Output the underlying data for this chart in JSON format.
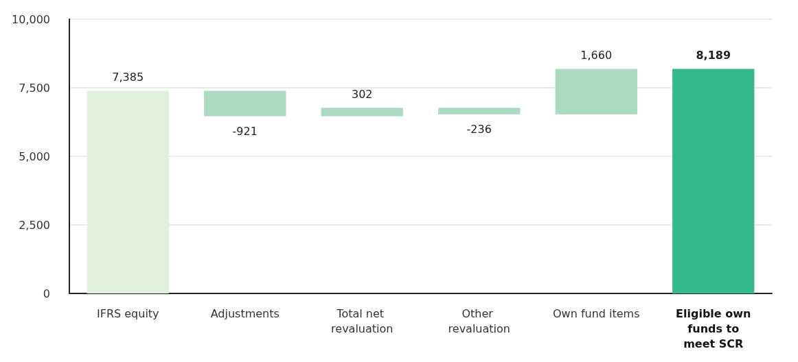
{
  "chart_data": {
    "type": "bar",
    "categories": [
      "IFRS equity",
      "Adjustments",
      "Total net revaluation",
      "Other revaluation",
      "Own fund items",
      "Eligible own funds to meet SCR"
    ],
    "values": [
      7385,
      -921,
      302,
      -236,
      1660,
      8189
    ],
    "base": [
      0,
      7385,
      6464,
      6766,
      6530,
      0
    ],
    "colors": [
      "#e2efdc",
      "#acd9c2",
      "#acd9c2",
      "#acd9c2",
      "#acd9c2",
      "#33b98a"
    ],
    "ylim": [
      0,
      10000
    ],
    "yticks": [
      0,
      {
        "value": 2500,
        "label": "2,500"
      },
      {
        "value": 5000,
        "label": "5,000"
      },
      {
        "value": 7500,
        "label": "7,500"
      },
      {
        "value": 10000,
        "label": "10,000"
      }
    ],
    "grid": "y",
    "value_labels": [
      "7,385",
      "-921",
      "302",
      "-236",
      "1,660",
      "8,189"
    ]
  }
}
